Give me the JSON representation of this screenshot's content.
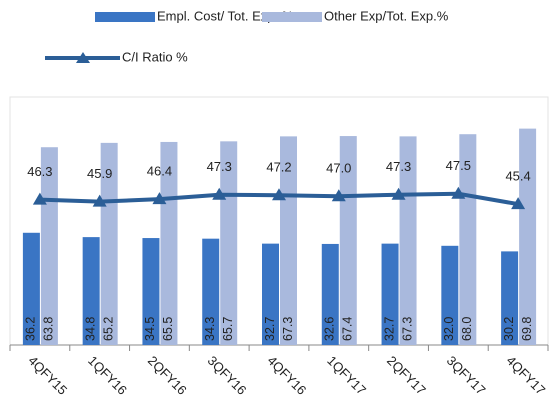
{
  "chart_data": {
    "type": "bar",
    "categories": [
      "4QFY15",
      "1QFY16",
      "2QFY16",
      "3QFY16",
      "4QFY16",
      "1QFY17",
      "2QFY17",
      "3QFY17",
      "4QFY17"
    ],
    "series": [
      {
        "name": "Empl. Cost/ Tot. Exp. %",
        "color": "#3a75c4",
        "values": [
          36.2,
          34.8,
          34.5,
          34.3,
          32.7,
          32.6,
          32.7,
          32.0,
          30.2
        ],
        "value_labels": [
          "36.2",
          "34.8",
          "34.5",
          "34.3",
          "32.7",
          "32.6",
          "32.7",
          "32.0",
          "30.2"
        ]
      },
      {
        "name": "Other Exp/Tot. Exp.%",
        "color": "#a9b9dd",
        "values": [
          63.8,
          65.2,
          65.5,
          65.7,
          67.3,
          67.4,
          67.3,
          68.0,
          69.8
        ],
        "value_labels": [
          "63.8",
          "65.2",
          "65.5",
          "65.7",
          "67.3",
          "67.4",
          "67.3",
          "68.0",
          "69.8"
        ]
      },
      {
        "name": "C/I Ratio %",
        "color": "#2b5e97",
        "type": "line",
        "axis": "y2",
        "values": [
          46.3,
          45.9,
          46.4,
          47.3,
          47.2,
          47.0,
          47.3,
          47.5,
          45.4
        ],
        "value_labels": [
          "46.3",
          "45.9",
          "46.4",
          "47.3",
          "47.2",
          "47.0",
          "47.3",
          "47.5",
          "45.4"
        ]
      }
    ],
    "ylim": [
      0,
      80
    ],
    "y2lim": [
      17,
      67
    ]
  }
}
